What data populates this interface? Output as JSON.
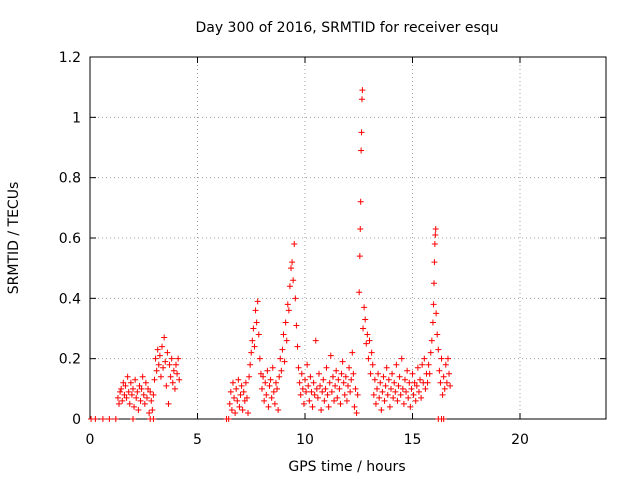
{
  "chart_data": {
    "type": "scatter",
    "title": "Day 300 of 2016, SRMTID for receiver esqu",
    "xlabel": "GPS time / hours",
    "ylabel": "SRMTID / TECUs",
    "xlim": [
      0,
      24
    ],
    "ylim": [
      0,
      1.2
    ],
    "x_ticks": [
      0,
      5,
      10,
      15,
      20
    ],
    "y_ticks": [
      0,
      0.2,
      0.4,
      0.6,
      0.8,
      1,
      1.2
    ],
    "x_tick_labels": [
      "0",
      "5",
      "10",
      "15",
      "20"
    ],
    "y_tick_labels": [
      "0",
      "0.2",
      "0.4",
      "0.6",
      "0.8",
      "1",
      "1.2"
    ],
    "grid": true,
    "marker": "+",
    "color": "#ff0000",
    "series": [
      {
        "name": "SRMTID",
        "points": [
          [
            0.05,
            0
          ],
          [
            0.25,
            0
          ],
          [
            0.6,
            0
          ],
          [
            0.9,
            0
          ],
          [
            1.2,
            0
          ],
          [
            2.0,
            0
          ],
          [
            2.8,
            0
          ],
          [
            2.95,
            0
          ],
          [
            6.35,
            0
          ],
          [
            6.45,
            0
          ],
          [
            16.2,
            0
          ],
          [
            16.35,
            0
          ],
          [
            16.45,
            0
          ],
          [
            1.3,
            0.07
          ],
          [
            1.35,
            0.05
          ],
          [
            1.4,
            0.09
          ],
          [
            1.45,
            0.1
          ],
          [
            1.5,
            0.06
          ],
          [
            1.55,
            0.12
          ],
          [
            1.6,
            0.08
          ],
          [
            1.65,
            0.11
          ],
          [
            1.7,
            0.07
          ],
          [
            1.75,
            0.14
          ],
          [
            1.8,
            0.09
          ],
          [
            1.85,
            0.05
          ],
          [
            1.9,
            0.12
          ],
          [
            1.95,
            0.08
          ],
          [
            2.0,
            0.1
          ],
          [
            2.05,
            0.04
          ],
          [
            2.1,
            0.13
          ],
          [
            2.15,
            0.07
          ],
          [
            2.2,
            0.09
          ],
          [
            2.25,
            0.03
          ],
          [
            2.3,
            0.11
          ],
          [
            2.35,
            0.06
          ],
          [
            2.4,
            0.1
          ],
          [
            2.45,
            0.14
          ],
          [
            2.5,
            0.08
          ],
          [
            2.55,
            0.05
          ],
          [
            2.6,
            0.12
          ],
          [
            2.65,
            0.07
          ],
          [
            2.7,
            0.1
          ],
          [
            2.75,
            0.02
          ],
          [
            2.8,
            0.09
          ],
          [
            2.85,
            0.06
          ],
          [
            2.9,
            0.03
          ],
          [
            2.95,
            0.08
          ],
          [
            3.0,
            0.13
          ],
          [
            3.05,
            0.2
          ],
          [
            3.1,
            0.16
          ],
          [
            3.15,
            0.23
          ],
          [
            3.2,
            0.18
          ],
          [
            3.25,
            0.21
          ],
          [
            3.3,
            0.14
          ],
          [
            3.35,
            0.24
          ],
          [
            3.4,
            0.17
          ],
          [
            3.45,
            0.27
          ],
          [
            3.5,
            0.19
          ],
          [
            3.55,
            0.11
          ],
          [
            3.6,
            0.22
          ],
          [
            3.65,
            0.05
          ],
          [
            3.7,
            0.18
          ],
          [
            3.75,
            0.14
          ],
          [
            3.8,
            0.2
          ],
          [
            3.85,
            0.12
          ],
          [
            3.9,
            0.16
          ],
          [
            3.95,
            0.1
          ],
          [
            4.0,
            0.18
          ],
          [
            4.05,
            0.15
          ],
          [
            4.1,
            0.2
          ],
          [
            4.15,
            0.13
          ],
          [
            6.5,
            0.05
          ],
          [
            6.55,
            0.09
          ],
          [
            6.6,
            0.03
          ],
          [
            6.65,
            0.12
          ],
          [
            6.7,
            0.07
          ],
          [
            6.75,
            0.02
          ],
          [
            6.8,
            0.1
          ],
          [
            6.85,
            0.06
          ],
          [
            6.9,
            0.13
          ],
          [
            6.95,
            0.04
          ],
          [
            7.0,
            0.08
          ],
          [
            7.05,
            0.11
          ],
          [
            7.1,
            0.03
          ],
          [
            7.15,
            0.09
          ],
          [
            7.2,
            0.06
          ],
          [
            7.25,
            0.12
          ],
          [
            7.3,
            0.07
          ],
          [
            7.35,
            0.02
          ],
          [
            7.4,
            0.14
          ],
          [
            7.45,
            0.18
          ],
          [
            7.5,
            0.22
          ],
          [
            7.55,
            0.26
          ],
          [
            7.6,
            0.3
          ],
          [
            7.65,
            0.24
          ],
          [
            7.7,
            0.36
          ],
          [
            7.75,
            0.32
          ],
          [
            7.8,
            0.39
          ],
          [
            7.85,
            0.28
          ],
          [
            7.9,
            0.2
          ],
          [
            7.95,
            0.15
          ],
          [
            8.0,
            0.1
          ],
          [
            8.05,
            0.14
          ],
          [
            8.1,
            0.06
          ],
          [
            8.15,
            0.12
          ],
          [
            8.2,
            0.08
          ],
          [
            8.25,
            0.16
          ],
          [
            8.3,
            0.04
          ],
          [
            8.35,
            0.11
          ],
          [
            8.4,
            0.13
          ],
          [
            8.45,
            0.07
          ],
          [
            8.5,
            0.17
          ],
          [
            8.55,
            0.09
          ],
          [
            8.6,
            0.05
          ],
          [
            8.65,
            0.12
          ],
          [
            8.7,
            0.1
          ],
          [
            8.75,
            0.03
          ],
          [
            8.8,
            0.14
          ],
          [
            8.85,
            0.2
          ],
          [
            8.9,
            0.16
          ],
          [
            8.95,
            0.23
          ],
          [
            9.0,
            0.28
          ],
          [
            9.05,
            0.19
          ],
          [
            9.1,
            0.32
          ],
          [
            9.15,
            0.26
          ],
          [
            9.2,
            0.38
          ],
          [
            9.25,
            0.36
          ],
          [
            9.3,
            0.44
          ],
          [
            9.35,
            0.5
          ],
          [
            9.4,
            0.52
          ],
          [
            9.45,
            0.46
          ],
          [
            9.5,
            0.58
          ],
          [
            9.55,
            0.4
          ],
          [
            9.6,
            0.31
          ],
          [
            9.65,
            0.24
          ],
          [
            9.7,
            0.17
          ],
          [
            9.75,
            0.12
          ],
          [
            9.8,
            0.08
          ],
          [
            9.85,
            0.15
          ],
          [
            9.9,
            0.1
          ],
          [
            9.95,
            0.05
          ],
          [
            10.0,
            0.13
          ],
          [
            10.05,
            0.09
          ],
          [
            10.1,
            0.18
          ],
          [
            10.15,
            0.11
          ],
          [
            10.2,
            0.06
          ],
          [
            10.25,
            0.14
          ],
          [
            10.3,
            0.09
          ],
          [
            10.35,
            0.04
          ],
          [
            10.4,
            0.12
          ],
          [
            10.45,
            0.08
          ],
          [
            10.5,
            0.26
          ],
          [
            10.55,
            0.1
          ],
          [
            10.6,
            0.07
          ],
          [
            10.65,
            0.15
          ],
          [
            10.7,
            0.11
          ],
          [
            10.75,
            0.03
          ],
          [
            10.8,
            0.09
          ],
          [
            10.85,
            0.13
          ],
          [
            10.9,
            0.06
          ],
          [
            10.95,
            0.1
          ],
          [
            11.0,
            0.17
          ],
          [
            11.05,
            0.08
          ],
          [
            11.1,
            0.04
          ],
          [
            11.15,
            0.12
          ],
          [
            11.2,
            0.21
          ],
          [
            11.25,
            0.09
          ],
          [
            11.3,
            0.14
          ],
          [
            11.35,
            0.06
          ],
          [
            11.4,
            0.11
          ],
          [
            11.45,
            0.16
          ],
          [
            11.5,
            0.07
          ],
          [
            11.55,
            0.13
          ],
          [
            11.6,
            0.1
          ],
          [
            11.65,
            0.05
          ],
          [
            11.7,
            0.15
          ],
          [
            11.75,
            0.19
          ],
          [
            11.8,
            0.12
          ],
          [
            11.85,
            0.08
          ],
          [
            11.9,
            0.14
          ],
          [
            11.95,
            0.06
          ],
          [
            12.0,
            0.11
          ],
          [
            12.05,
            0.17
          ],
          [
            12.1,
            0.09
          ],
          [
            12.15,
            0.13
          ],
          [
            12.2,
            0.22
          ],
          [
            12.25,
            0.15
          ],
          [
            12.3,
            0.04
          ],
          [
            12.35,
            0.1
          ],
          [
            12.4,
            0.02
          ],
          [
            12.45,
            0.08
          ],
          [
            12.52,
            0.42
          ],
          [
            12.55,
            0.54
          ],
          [
            12.57,
            0.63
          ],
          [
            12.59,
            0.72
          ],
          [
            12.61,
            0.89
          ],
          [
            12.63,
            0.95
          ],
          [
            12.65,
            1.06
          ],
          [
            12.67,
            1.09
          ],
          [
            12.7,
            0.3
          ],
          [
            12.75,
            0.37
          ],
          [
            12.8,
            0.33
          ],
          [
            12.85,
            0.25
          ],
          [
            12.9,
            0.28
          ],
          [
            12.95,
            0.2
          ],
          [
            13.0,
            0.26
          ],
          [
            13.05,
            0.15
          ],
          [
            13.1,
            0.22
          ],
          [
            13.15,
            0.18
          ],
          [
            13.2,
            0.08
          ],
          [
            13.25,
            0.13
          ],
          [
            13.3,
            0.05
          ],
          [
            13.35,
            0.1
          ],
          [
            13.4,
            0.15
          ],
          [
            13.45,
            0.07
          ],
          [
            13.5,
            0.12
          ],
          [
            13.55,
            0.03
          ],
          [
            13.6,
            0.09
          ],
          [
            13.65,
            0.14
          ],
          [
            13.7,
            0.06
          ],
          [
            13.75,
            0.11
          ],
          [
            13.8,
            0.17
          ],
          [
            13.85,
            0.08
          ],
          [
            13.9,
            0.13
          ],
          [
            13.95,
            0.04
          ],
          [
            14.0,
            0.1
          ],
          [
            14.05,
            0.15
          ],
          [
            14.1,
            0.07
          ],
          [
            14.15,
            0.12
          ],
          [
            14.2,
            0.09
          ],
          [
            14.25,
            0.18
          ],
          [
            14.3,
            0.06
          ],
          [
            14.35,
            0.11
          ],
          [
            14.4,
            0.14
          ],
          [
            14.45,
            0.08
          ],
          [
            14.5,
            0.2
          ],
          [
            14.55,
            0.1
          ],
          [
            14.6,
            0.05
          ],
          [
            14.65,
            0.13
          ],
          [
            14.7,
            0.09
          ],
          [
            14.75,
            0.16
          ],
          [
            14.8,
            0.07
          ],
          [
            14.85,
            0.12
          ],
          [
            14.9,
            0.04
          ],
          [
            14.95,
            0.1
          ],
          [
            15.0,
            0.15
          ],
          [
            15.05,
            0.08
          ],
          [
            15.1,
            0.12
          ],
          [
            15.15,
            0.06
          ],
          [
            15.2,
            0.11
          ],
          [
            15.25,
            0.17
          ],
          [
            15.3,
            0.09
          ],
          [
            15.35,
            0.13
          ],
          [
            15.4,
            0.07
          ],
          [
            15.45,
            0.18
          ],
          [
            15.5,
            0.12
          ],
          [
            15.55,
            0.2
          ],
          [
            15.6,
            0.1
          ],
          [
            15.65,
            0.15
          ],
          [
            15.7,
            0.12
          ],
          [
            15.75,
            0.18
          ],
          [
            15.8,
            0.15
          ],
          [
            15.85,
            0.22
          ],
          [
            15.9,
            0.26
          ],
          [
            15.95,
            0.32
          ],
          [
            15.98,
            0.38
          ],
          [
            16.0,
            0.45
          ],
          [
            16.02,
            0.52
          ],
          [
            16.04,
            0.58
          ],
          [
            16.06,
            0.61
          ],
          [
            16.08,
            0.63
          ],
          [
            16.1,
            0.35
          ],
          [
            16.15,
            0.28
          ],
          [
            16.2,
            0.23
          ],
          [
            16.25,
            0.16
          ],
          [
            16.3,
            0.12
          ],
          [
            16.35,
            0.2
          ],
          [
            16.4,
            0.08
          ],
          [
            16.45,
            0.14
          ],
          [
            16.5,
            0.1
          ],
          [
            16.55,
            0.18
          ],
          [
            16.6,
            0.12
          ],
          [
            16.65,
            0.2
          ],
          [
            16.7,
            0.15
          ],
          [
            16.75,
            0.11
          ]
        ]
      }
    ]
  }
}
